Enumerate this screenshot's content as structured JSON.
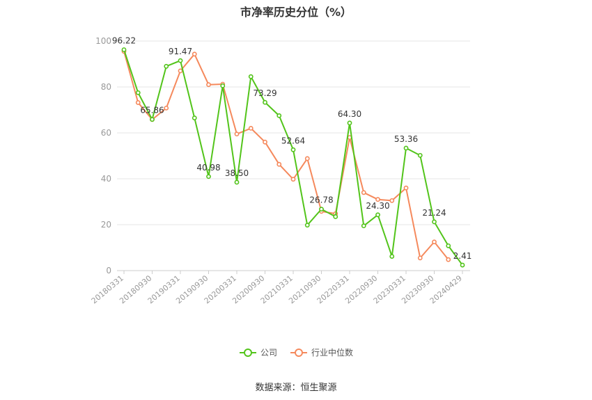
{
  "chart_data": {
    "type": "line",
    "title": "市净率历史分位（%）",
    "source": "数据来源：恒生聚源",
    "ylim": [
      0,
      100
    ],
    "yticks": [
      0,
      20,
      40,
      60,
      80,
      100
    ],
    "grid": true,
    "legend_position": "bottom",
    "xticklabels": [
      "20180331",
      "20180930",
      "20190331",
      "20190930",
      "20200331",
      "20200930",
      "20210331",
      "20210930",
      "20220331",
      "20220930",
      "20230331",
      "20230930",
      "20240429"
    ],
    "x": [
      "20180331",
      "20180630",
      "20180930",
      "20181231",
      "20190331",
      "20190630",
      "20190930",
      "20191231",
      "20200331",
      "20200630",
      "20200930",
      "20201231",
      "20210331",
      "20210630",
      "20210930",
      "20211231",
      "20220331",
      "20220630",
      "20220930",
      "20221231",
      "20230331",
      "20230630",
      "20230930",
      "20231231",
      "20240429"
    ],
    "series": [
      {
        "name": "公司",
        "color": "#52c41a",
        "values": [
          96.22,
          77.5,
          65.86,
          89.0,
          91.47,
          66.5,
          40.98,
          80.5,
          38.5,
          84.5,
          73.29,
          67.5,
          52.64,
          19.8,
          26.78,
          23.5,
          64.3,
          19.5,
          24.3,
          6.2,
          53.36,
          50.2,
          21.24,
          10.8,
          2.41
        ]
      },
      {
        "name": "行业中位数",
        "color": "#f5895c",
        "values": [
          95.5,
          73.2,
          65.8,
          70.8,
          87.0,
          94.3,
          81.0,
          81.2,
          59.5,
          62.0,
          56.0,
          46.3,
          39.8,
          48.8,
          25.8,
          24.8,
          58.0,
          34.0,
          31.0,
          30.5,
          36.0,
          5.5,
          12.5,
          4.8,
          null
        ]
      }
    ],
    "data_labels": [
      {
        "index": 0,
        "text": "96.22"
      },
      {
        "index": 2,
        "text": "65.86"
      },
      {
        "index": 4,
        "text": "91.47"
      },
      {
        "index": 6,
        "text": "40.98"
      },
      {
        "index": 8,
        "text": "38.50"
      },
      {
        "index": 10,
        "text": "73.29"
      },
      {
        "index": 12,
        "text": "52.64"
      },
      {
        "index": 14,
        "text": "26.78"
      },
      {
        "index": 16,
        "text": "64.30"
      },
      {
        "index": 18,
        "text": "24.30"
      },
      {
        "index": 20,
        "text": "53.36"
      },
      {
        "index": 22,
        "text": "21.24"
      },
      {
        "index": 24,
        "text": "2.41"
      }
    ]
  }
}
